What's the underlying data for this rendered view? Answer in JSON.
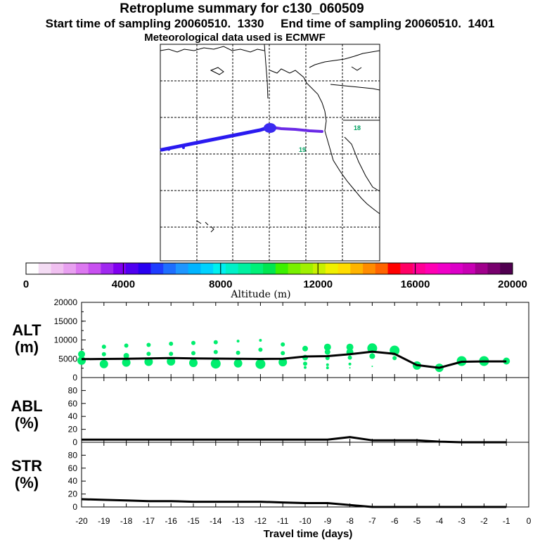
{
  "header": {
    "title": "Retroplume summary for c130_060509",
    "sampling": "Start time of sampling 20060510.  1330     End time of sampling 20060510.  1401",
    "met": "Meteorological data used is ECMWF"
  },
  "map": {
    "labels": [
      "18",
      "19"
    ],
    "colors": {
      "trajectory": "#2a1af0",
      "trajectory_east": "#6a2ae6",
      "label": "#00a060"
    }
  },
  "colorbar": {
    "tick_labels": [
      "0",
      "4000",
      "8000",
      "12000",
      "16000",
      "20000"
    ],
    "title": "Altitude (m)",
    "colors": [
      "#ffffff",
      "#f4dcf4",
      "#f0c0f0",
      "#e8a0f0",
      "#dc78f0",
      "#c850f0",
      "#a028f0",
      "#8000f0",
      "#5000f0",
      "#2800f0",
      "#1e3cff",
      "#1e6eff",
      "#1e96ff",
      "#00b4ff",
      "#00d2ff",
      "#00f0f0",
      "#00f0c8",
      "#00f0a0",
      "#00f078",
      "#00e650",
      "#3cf000",
      "#78f000",
      "#a0f000",
      "#c8f000",
      "#f0f000",
      "#ffdc00",
      "#ffb400",
      "#ff8c00",
      "#ff6400",
      "#ff0000",
      "#ff0064",
      "#ff0096",
      "#ff00b4",
      "#f000c8",
      "#dc00c8",
      "#c800b4",
      "#a0008c",
      "#78006e",
      "#500050"
    ]
  },
  "chart_data": {
    "type": "line",
    "xlabel": "Travel time (days)",
    "x_ticks": [
      "-20",
      "-19",
      "-18",
      "-17",
      "-16",
      "-15",
      "-14",
      "-13",
      "-12",
      "-11",
      "-10",
      "-9",
      "-8",
      "-7",
      "-6",
      "-5",
      "-4",
      "-3",
      "-2",
      "-1",
      "0"
    ],
    "xlim": [
      -20,
      0
    ],
    "panels": [
      {
        "label_top": "ALT",
        "label_bottom": "(m)",
        "ylim": [
          0,
          20000
        ],
        "y_ticks": [
          "0",
          "5000",
          "10000",
          "15000",
          "20000"
        ],
        "series": [
          {
            "name": "mean altitude",
            "x": [
              -20,
              -19,
              -18,
              -17,
              -16,
              -15,
              -14,
              -13,
              -12,
              -11,
              -10,
              -9,
              -8,
              -7,
              -6,
              -5,
              -4,
              -3,
              -2,
              -1
            ],
            "values": [
              4900,
              4950,
              5000,
              5100,
              5200,
              5100,
              5050,
              5000,
              4950,
              5000,
              5600,
              5700,
              6200,
              6900,
              6300,
              3300,
              2600,
              4200,
              4300,
              4300
            ]
          }
        ],
        "dots": [
          {
            "x": -20,
            "y": 6200,
            "r": 5
          },
          {
            "x": -20,
            "y": 4500,
            "r": 6
          },
          {
            "x": -19,
            "y": 8200,
            "r": 3
          },
          {
            "x": -19,
            "y": 6200,
            "r": 3
          },
          {
            "x": -19,
            "y": 3600,
            "r": 6
          },
          {
            "x": -18,
            "y": 8500,
            "r": 3
          },
          {
            "x": -18,
            "y": 5800,
            "r": 4
          },
          {
            "x": -18,
            "y": 4000,
            "r": 6
          },
          {
            "x": -17,
            "y": 8700,
            "r": 3
          },
          {
            "x": -17,
            "y": 6300,
            "r": 3
          },
          {
            "x": -17,
            "y": 4200,
            "r": 6
          },
          {
            "x": -16,
            "y": 9000,
            "r": 3
          },
          {
            "x": -16,
            "y": 6300,
            "r": 3
          },
          {
            "x": -16,
            "y": 4300,
            "r": 6
          },
          {
            "x": -15,
            "y": 9200,
            "r": 3
          },
          {
            "x": -15,
            "y": 6500,
            "r": 3
          },
          {
            "x": -15,
            "y": 3900,
            "r": 6
          },
          {
            "x": -14,
            "y": 9400,
            "r": 3
          },
          {
            "x": -14,
            "y": 6800,
            "r": 3
          },
          {
            "x": -14,
            "y": 3700,
            "r": 7
          },
          {
            "x": -13,
            "y": 9700,
            "r": 2
          },
          {
            "x": -13,
            "y": 6600,
            "r": 3
          },
          {
            "x": -13,
            "y": 3800,
            "r": 6
          },
          {
            "x": -12,
            "y": 9900,
            "r": 2
          },
          {
            "x": -12,
            "y": 7400,
            "r": 3
          },
          {
            "x": -12,
            "y": 3600,
            "r": 7
          },
          {
            "x": -11,
            "y": 8800,
            "r": 3
          },
          {
            "x": -11,
            "y": 6500,
            "r": 3
          },
          {
            "x": -11,
            "y": 4100,
            "r": 6
          },
          {
            "x": -10,
            "y": 7700,
            "r": 4
          },
          {
            "x": -10,
            "y": 5300,
            "r": 4
          },
          {
            "x": -10,
            "y": 3700,
            "r": 3
          },
          {
            "x": -10,
            "y": 2700,
            "r": 2
          },
          {
            "x": -9,
            "y": 8100,
            "r": 5
          },
          {
            "x": -9,
            "y": 6800,
            "r": 4
          },
          {
            "x": -9,
            "y": 5200,
            "r": 3
          },
          {
            "x": -9,
            "y": 3400,
            "r": 2
          },
          {
            "x": -9,
            "y": 2600,
            "r": 2
          },
          {
            "x": -8,
            "y": 8100,
            "r": 5
          },
          {
            "x": -8,
            "y": 6800,
            "r": 5
          },
          {
            "x": -8,
            "y": 5300,
            "r": 3
          },
          {
            "x": -8,
            "y": 3600,
            "r": 2
          },
          {
            "x": -8,
            "y": 2600,
            "r": 1
          },
          {
            "x": -7,
            "y": 7800,
            "r": 7
          },
          {
            "x": -7,
            "y": 5700,
            "r": 4
          },
          {
            "x": -7,
            "y": 3000,
            "r": 1
          },
          {
            "x": -6,
            "y": 7200,
            "r": 7
          },
          {
            "x": -6,
            "y": 5200,
            "r": 3
          },
          {
            "x": -5,
            "y": 3200,
            "r": 6
          },
          {
            "x": -4,
            "y": 2600,
            "r": 6
          },
          {
            "x": -3,
            "y": 4400,
            "r": 7
          },
          {
            "x": -2,
            "y": 4400,
            "r": 7
          },
          {
            "x": -1,
            "y": 4400,
            "r": 5
          }
        ],
        "dot_color": "#00ee6e"
      },
      {
        "label_top": "ABL",
        "label_bottom": "(%)",
        "ylim": [
          0,
          100
        ],
        "y_ticks": [
          "0",
          "20",
          "40",
          "60",
          "80"
        ],
        "series": [
          {
            "name": "ABL fraction",
            "x": [
              -20,
              -19,
              -18,
              -17,
              -16,
              -15,
              -14,
              -13,
              -12,
              -11,
              -10,
              -9,
              -8,
              -7,
              -6,
              -5,
              -4,
              -3,
              -2,
              -1
            ],
            "values": [
              4,
              4,
              4,
              4,
              4,
              4,
              4,
              4,
              4,
              4,
              4,
              4,
              8,
              3,
              3,
              3,
              1,
              0,
              0,
              0
            ]
          }
        ]
      },
      {
        "label_top": "STR",
        "label_bottom": "(%)",
        "ylim": [
          0,
          100
        ],
        "y_ticks": [
          "0",
          "20",
          "40",
          "60",
          "80"
        ],
        "series": [
          {
            "name": "stratospheric fraction",
            "x": [
              -20,
              -19,
              -18,
              -17,
              -16,
              -15,
              -14,
              -13,
              -12,
              -11,
              -10,
              -9,
              -8,
              -7,
              -6,
              -5,
              -4,
              -3,
              -2,
              -1
            ],
            "values": [
              12,
              11,
              10,
              9,
              9,
              8,
              8,
              8,
              8,
              7,
              6,
              6,
              3,
              0,
              0,
              0,
              0,
              0,
              0,
              0
            ]
          }
        ]
      }
    ]
  }
}
